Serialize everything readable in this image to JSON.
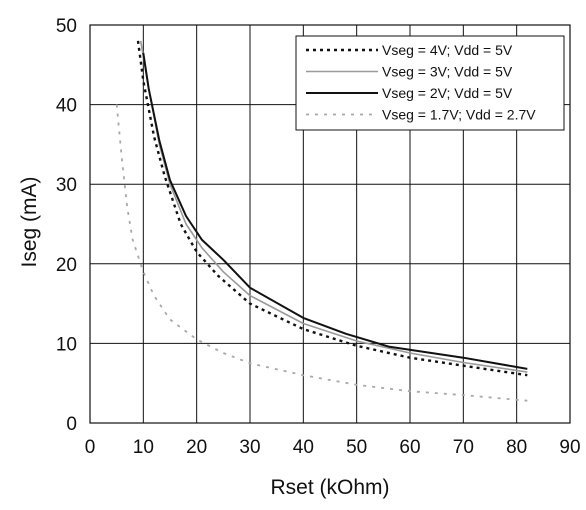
{
  "chart_data": {
    "type": "line",
    "xlabel": "Rset (kOhm)",
    "ylabel": "Iseg (mA)",
    "xlim": [
      0,
      90
    ],
    "ylim": [
      0,
      50
    ],
    "xticks": [
      0,
      10,
      20,
      30,
      40,
      50,
      60,
      70,
      80,
      90
    ],
    "yticks": [
      0,
      10,
      20,
      30,
      40,
      50
    ],
    "grid": true,
    "legend_position": "top-right",
    "series": [
      {
        "name": "Vseg = 4V; Vdd = 5V",
        "color": "#111111",
        "style": "dotted",
        "x": [
          9,
          10,
          12,
          14,
          17,
          20,
          24,
          30,
          40,
          50,
          60,
          70,
          82
        ],
        "y": [
          48,
          43,
          36,
          31,
          25,
          21.5,
          18.5,
          15,
          11.8,
          9.7,
          8.2,
          7.2,
          6.0
        ]
      },
      {
        "name": "Vseg = 3V; Vdd = 5V",
        "color": "#9a9a9a",
        "style": "solid",
        "x": [
          9.5,
          11,
          13,
          15,
          18,
          21,
          25,
          30,
          40,
          50,
          60,
          70,
          82
        ],
        "y": [
          48,
          42,
          35,
          30,
          25,
          22,
          19,
          16,
          12.5,
          10.3,
          8.8,
          7.6,
          6.4
        ]
      },
      {
        "name": "Vseg = 2V; Vdd = 5V",
        "color": "#111111",
        "style": "solid",
        "x": [
          10,
          11,
          13,
          15,
          18,
          21,
          25,
          30,
          40,
          48,
          56,
          70,
          82
        ],
        "y": [
          46.5,
          42,
          35.5,
          30.5,
          26,
          23,
          20.5,
          17,
          13.2,
          11.2,
          9.6,
          8.2,
          6.8
        ]
      },
      {
        "name": "Vseg = 1.7V; Vdd = 2.7V",
        "color": "#a8a8a8",
        "style": "dashed",
        "x": [
          5,
          6,
          7,
          8,
          9,
          10,
          12,
          15,
          20,
          25,
          30,
          40,
          50,
          60,
          70,
          82
        ],
        "y": [
          40,
          33,
          27,
          23,
          21,
          19,
          16,
          13,
          10.5,
          8.8,
          7.5,
          6.0,
          4.8,
          4.0,
          3.5,
          2.8
        ]
      }
    ]
  }
}
